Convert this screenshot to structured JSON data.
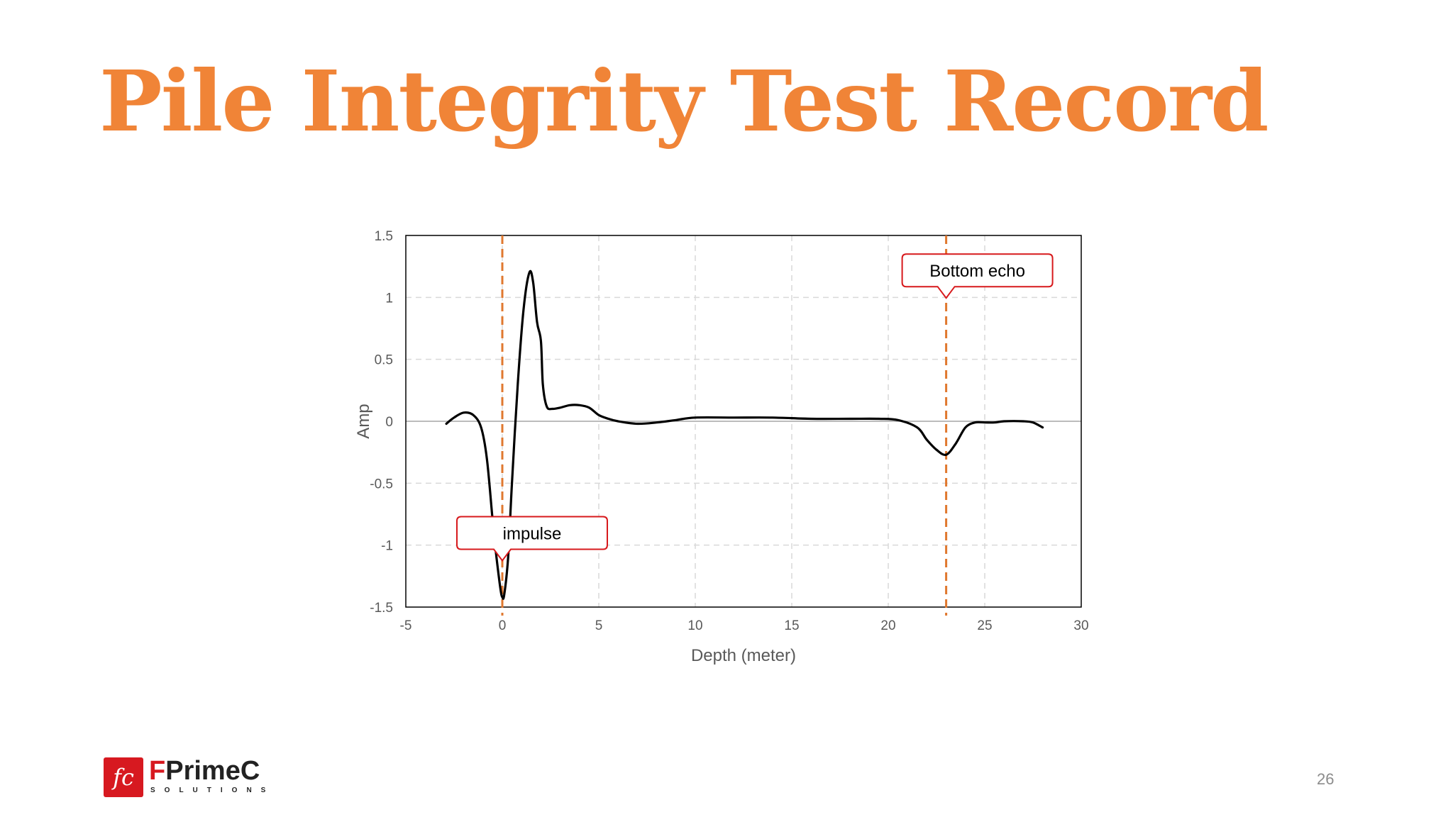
{
  "slide": {
    "title": "Pile Integrity Test Record",
    "page_number": "26"
  },
  "logo": {
    "mark": "fc",
    "name_first": "F",
    "name_rest": "PrimeC",
    "tagline": "SOLUTIONS"
  },
  "colors": {
    "title": "#f08437",
    "marker_line": "#e0782f",
    "callout_border": "#d7191c",
    "trace": "#000000",
    "logo_red": "#d71920"
  },
  "chart_data": {
    "type": "line",
    "xlabel": "Depth (meter)",
    "ylabel": "Amp",
    "xlim": [
      -5,
      30
    ],
    "ylim": [
      -1.5,
      1.5
    ],
    "x_ticks": [
      -5,
      0,
      5,
      10,
      15,
      20,
      25,
      30
    ],
    "y_ticks": [
      -1.5,
      -1,
      -0.5,
      0,
      0.5,
      1,
      1.5
    ],
    "x_tick_labels": [
      "-5",
      "0",
      "5",
      "10",
      "15",
      "20",
      "25",
      "30"
    ],
    "y_tick_labels": [
      "-1.5",
      "-1",
      "-0.5",
      "0",
      "0.5",
      "1",
      "1.5"
    ],
    "grid": true,
    "series": [
      {
        "x": [
          -2.9,
          -2.5,
          -2,
          -1.5,
          -1.1,
          -0.8,
          -0.5,
          -0.3,
          -0.1,
          0,
          0.1,
          0.3,
          0.5,
          0.8,
          1.1,
          1.4,
          1.6,
          1.8,
          2.0,
          2.1,
          2.3,
          2.6,
          3.0,
          3.5,
          4.0,
          4.5,
          5.0,
          5.5,
          6,
          7,
          8,
          9,
          10,
          12,
          14,
          16,
          18,
          19.5,
          20.5,
          21.5,
          22.0,
          22.5,
          23.0,
          23.5,
          24.0,
          24.5,
          25,
          25.5,
          26,
          27,
          27.5,
          28.0
        ],
        "y": [
          -0.02,
          0.03,
          0.07,
          0.05,
          -0.05,
          -0.3,
          -0.8,
          -1.1,
          -1.35,
          -1.42,
          -1.4,
          -1.1,
          -0.5,
          0.3,
          0.9,
          1.2,
          1.12,
          0.8,
          0.65,
          0.3,
          0.12,
          0.1,
          0.11,
          0.13,
          0.13,
          0.11,
          0.05,
          0.02,
          0,
          -0.02,
          -0.01,
          0.01,
          0.03,
          0.03,
          0.03,
          0.02,
          0.02,
          0.02,
          0.01,
          -0.05,
          -0.15,
          -0.23,
          -0.27,
          -0.18,
          -0.05,
          -0.01,
          -0.01,
          -0.01,
          0,
          0,
          -0.01,
          -0.05
        ]
      }
    ],
    "markers": [
      {
        "x": 0,
        "label": "impulse"
      },
      {
        "x": 23,
        "label": "Bottom echo"
      }
    ]
  }
}
